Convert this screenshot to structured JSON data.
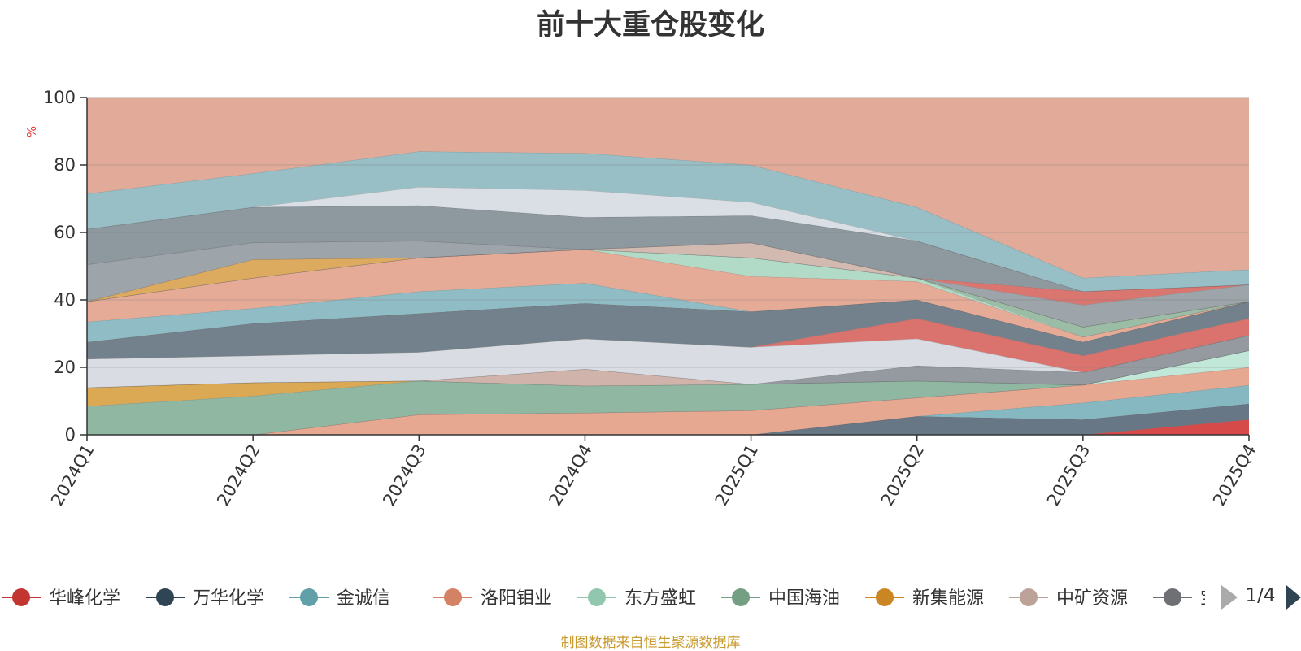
{
  "chart_data": {
    "type": "area",
    "title": "前十大重仓股变化",
    "ylabel": "%",
    "ylim": [
      0,
      100
    ],
    "yticks": [
      0,
      20,
      40,
      60,
      80,
      100
    ],
    "grid": true,
    "categories": [
      "2024Q1",
      "2024Q2",
      "2024Q3",
      "2024Q4",
      "2025Q1",
      "2025Q2",
      "2025Q3",
      "2025Q4"
    ],
    "layers": [
      {
        "color": "#d4413f",
        "bottom": [
          0,
          0,
          0,
          0,
          0,
          0,
          0,
          0
        ],
        "top": [
          0,
          0,
          0,
          0,
          0,
          0,
          0,
          4.5
        ]
      },
      {
        "color": "#60707f",
        "bottom": [
          0,
          0,
          0,
          0,
          0,
          0,
          0,
          4.5
        ],
        "top": [
          0,
          0,
          0,
          0,
          0,
          5.5,
          4.5,
          9.2
        ]
      },
      {
        "color": "#7fb4bf",
        "bottom": [
          0,
          0,
          0,
          0,
          0,
          5.5,
          4.5,
          9.2
        ],
        "top": [
          0,
          0,
          0,
          0,
          0,
          5.5,
          9.5,
          14.7
        ]
      },
      {
        "color": "#e6a38c",
        "bottom": [
          0,
          0,
          0,
          0,
          0,
          5.5,
          9.5,
          14.7
        ],
        "top": [
          0,
          0,
          6,
          6.5,
          7.2,
          11,
          14.8,
          20
        ]
      },
      {
        "color": "#bde6d5",
        "bottom": [
          0,
          0,
          6,
          6.5,
          7.2,
          11,
          14.8,
          20
        ],
        "top": [
          0,
          0,
          6,
          6.5,
          7.2,
          11,
          14.8,
          25
        ]
      },
      {
        "color": "#8ab39c",
        "bottom": [
          0,
          0,
          6,
          6.5,
          7.2,
          11,
          14.8,
          25
        ],
        "top": [
          8.5,
          11.5,
          16,
          14.5,
          15,
          16,
          14.8,
          25
        ]
      },
      {
        "color": "#d9a34a",
        "bottom": [
          8.5,
          11.5,
          16,
          14.5,
          15,
          16,
          14.8,
          25
        ],
        "top": [
          14,
          15.5,
          16,
          14.5,
          15,
          16,
          14.8,
          25
        ]
      },
      {
        "color": "#cdb0a6",
        "bottom": [
          14,
          15.5,
          16,
          14.5,
          15,
          16,
          14.8,
          25
        ],
        "top": [
          14,
          15.5,
          16,
          19.5,
          15,
          16,
          14.8,
          25
        ]
      },
      {
        "color": "#8e959b",
        "bottom": [
          14,
          15.5,
          16,
          19.5,
          15,
          16,
          14.8,
          25
        ],
        "top": [
          14,
          15.5,
          16,
          19.5,
          15,
          20.5,
          18.5,
          29.5
        ]
      },
      {
        "color": "#d7dbe2",
        "bottom": [
          14,
          15.5,
          16,
          19.5,
          15,
          20.5,
          18.5,
          29.5
        ],
        "top": [
          22.5,
          23.5,
          24.5,
          28.5,
          26,
          28.5,
          18.5,
          29.5
        ]
      },
      {
        "color": "#d86b66",
        "bottom": [
          22.5,
          23.5,
          24.5,
          28.5,
          26,
          28.5,
          18.5,
          29.5
        ],
        "top": [
          22.5,
          23.5,
          24.5,
          28.5,
          26,
          34.5,
          23.5,
          34.5
        ]
      },
      {
        "color": "#6a7a86",
        "bottom": [
          22.5,
          23.5,
          24.5,
          28.5,
          26,
          34.5,
          23.5,
          34.5
        ],
        "top": [
          27.5,
          33,
          36,
          39,
          36.5,
          40,
          27.5,
          39.5
        ]
      },
      {
        "color": "#8ab9c2",
        "bottom": [
          27.5,
          33,
          36,
          39,
          36.5,
          40,
          27.5,
          39.5
        ],
        "top": [
          33.5,
          37.5,
          42.5,
          45,
          36.5,
          40,
          27.5,
          39.5
        ]
      },
      {
        "color": "#e4a791",
        "bottom": [
          33.5,
          37.5,
          42.5,
          45,
          36.5,
          40,
          27.5,
          39.5
        ],
        "top": [
          39.5,
          46.5,
          52.5,
          55,
          47,
          45.5,
          29,
          39.5
        ]
      },
      {
        "color": "#aed9c4",
        "bottom": [
          39.5,
          46.5,
          52.5,
          55,
          47,
          45.5,
          29,
          39.5
        ],
        "top": [
          39.5,
          46.5,
          52.5,
          55,
          52.5,
          46.5,
          29,
          39.5
        ]
      },
      {
        "color": "#97b9a0",
        "bottom": [
          39.5,
          46.5,
          52.5,
          55,
          52.5,
          46.5,
          29,
          39.5
        ],
        "top": [
          39.5,
          46.5,
          52.5,
          55,
          52.5,
          46.5,
          32,
          39.5
        ]
      },
      {
        "color": "#dba757",
        "bottom": [
          39.5,
          46.5,
          52.5,
          55,
          52.5,
          46.5,
          32,
          39.5
        ],
        "top": [
          39.5,
          52,
          52.5,
          55,
          52.5,
          46.5,
          32,
          39.5
        ]
      },
      {
        "color": "#d1b6ad",
        "bottom": [
          39.5,
          52,
          52.5,
          55,
          52.5,
          46.5,
          32,
          39.5
        ],
        "top": [
          39.5,
          52,
          52.5,
          55,
          57,
          46.5,
          32,
          39.5
        ]
      },
      {
        "color": "#98a0a5",
        "bottom": [
          39.5,
          52,
          52.5,
          55,
          57,
          46.5,
          32,
          39.5
        ],
        "top": [
          50.5,
          57,
          57.5,
          55,
          57,
          46.5,
          38.5,
          44.5
        ]
      },
      {
        "color": "#d86f68",
        "bottom": [
          50.5,
          57,
          57.5,
          55,
          57,
          46.5,
          38.5,
          44.5
        ],
        "top": [
          50.5,
          57,
          57.5,
          55,
          57,
          46.5,
          42.5,
          44.5
        ]
      },
      {
        "color": "#87929a",
        "bottom": [
          50.5,
          57,
          57.5,
          55,
          57,
          46.5,
          42.5,
          44.5
        ],
        "top": [
          61,
          67.5,
          68,
          64.5,
          65,
          57.5,
          42.5,
          44.5
        ]
      },
      {
        "color": "#d7dde3",
        "bottom": [
          61,
          67.5,
          68,
          64.5,
          65,
          57.5,
          42.5,
          44.5
        ],
        "top": [
          61,
          67.5,
          73.5,
          72.5,
          69,
          57.5,
          42.5,
          44.5
        ]
      },
      {
        "color": "#92bcc3",
        "bottom": [
          61,
          67.5,
          73.5,
          72.5,
          69,
          57.5,
          42.5,
          44.5
        ],
        "top": [
          71.5,
          77.5,
          84,
          83.5,
          80,
          67.5,
          46.5,
          49
        ]
      },
      {
        "color": "#e0a793",
        "bottom": [
          71.5,
          77.5,
          84,
          83.5,
          80,
          67.5,
          46.5,
          49
        ],
        "top": [
          100,
          100,
          100,
          100,
          100,
          100,
          100,
          100
        ]
      }
    ]
  },
  "legend": {
    "items": [
      {
        "name": "华峰化学",
        "color": "#c23531"
      },
      {
        "name": "万华化学",
        "color": "#2f4554"
      },
      {
        "name": "金诚信",
        "color": "#61a0a8"
      },
      {
        "name": "洛阳钼业",
        "color": "#d48265"
      },
      {
        "name": "东方盛虹",
        "color": "#91c7ae"
      },
      {
        "name": "中国海油",
        "color": "#749f83"
      },
      {
        "name": "新集能源",
        "color": "#ca8622"
      },
      {
        "name": "中矿资源",
        "color": "#bda29a"
      },
      {
        "name": "宝钢",
        "color": "#6e7074"
      }
    ],
    "page": "1/4"
  },
  "source_note": "制图数据来自恒生聚源数据库"
}
